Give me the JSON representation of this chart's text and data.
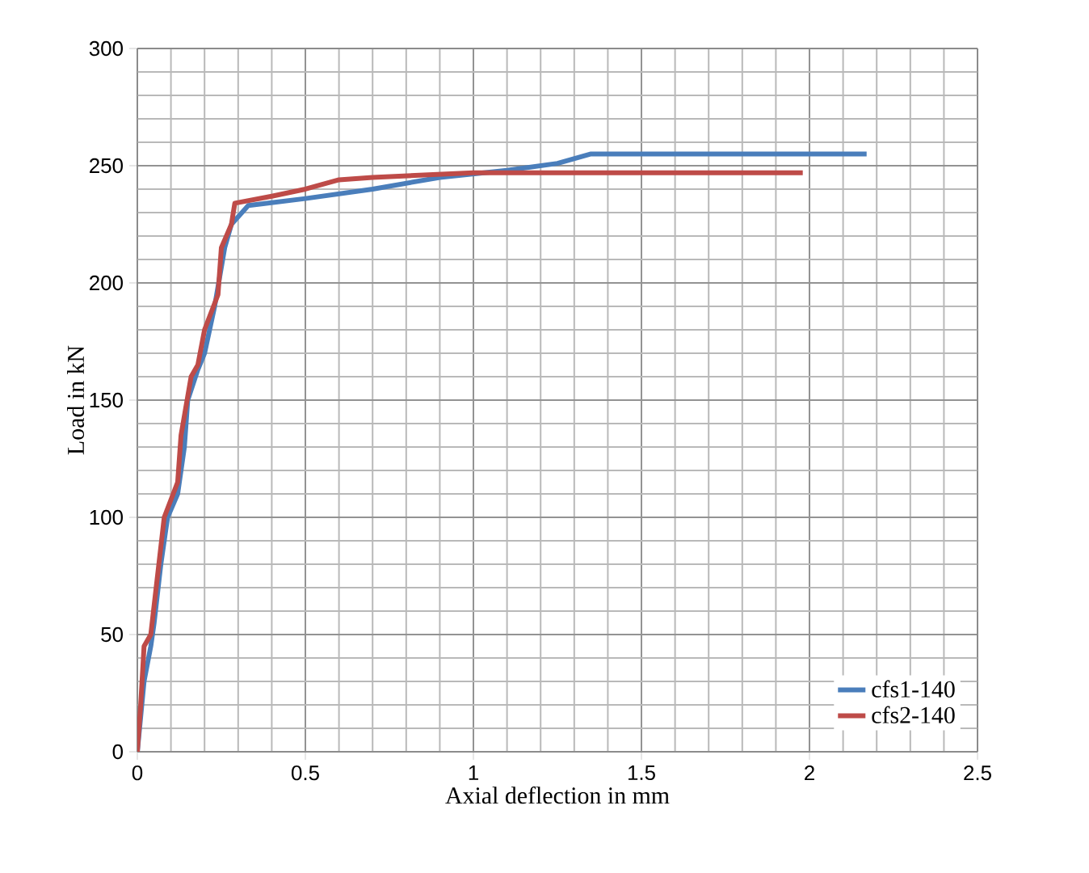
{
  "chart_data": {
    "type": "line",
    "xlabel": "Axial deflection in mm",
    "ylabel": "Load in kN",
    "xlim": [
      0,
      2.5
    ],
    "ylim": [
      0,
      300
    ],
    "xticks": [
      0,
      0.5,
      1,
      1.5,
      2,
      2.5
    ],
    "yticks": [
      0,
      50,
      100,
      150,
      200,
      250,
      300
    ],
    "grid": true,
    "legend": "bottom right",
    "marker": "none",
    "line_style": "solid",
    "series": [
      {
        "name": "cfs1-140",
        "color": "#4a7ebb",
        "x": [
          0,
          0.02,
          0.04,
          0.05,
          0.07,
          0.09,
          0.12,
          0.14,
          0.15,
          0.18,
          0.2,
          0.23,
          0.26,
          0.28,
          0.33,
          0.5,
          0.7,
          0.9,
          1.1,
          1.25,
          1.35,
          1.5,
          2.17
        ],
        "values": [
          0,
          30,
          45,
          55,
          80,
          100,
          110,
          130,
          150,
          163,
          170,
          190,
          215,
          225,
          233,
          236,
          240,
          245,
          248,
          251,
          255,
          255,
          255
        ]
      },
      {
        "name": "cfs2-140",
        "color": "#be4b48",
        "x": [
          0,
          0.01,
          0.02,
          0.04,
          0.06,
          0.08,
          0.12,
          0.13,
          0.16,
          0.18,
          0.2,
          0.24,
          0.25,
          0.28,
          0.29,
          0.4,
          0.5,
          0.6,
          0.7,
          1.0,
          1.2,
          1.98
        ],
        "values": [
          0,
          20,
          45,
          50,
          75,
          100,
          115,
          135,
          160,
          165,
          180,
          195,
          215,
          225,
          234,
          237,
          240,
          244,
          245,
          247,
          247,
          247
        ]
      }
    ]
  }
}
